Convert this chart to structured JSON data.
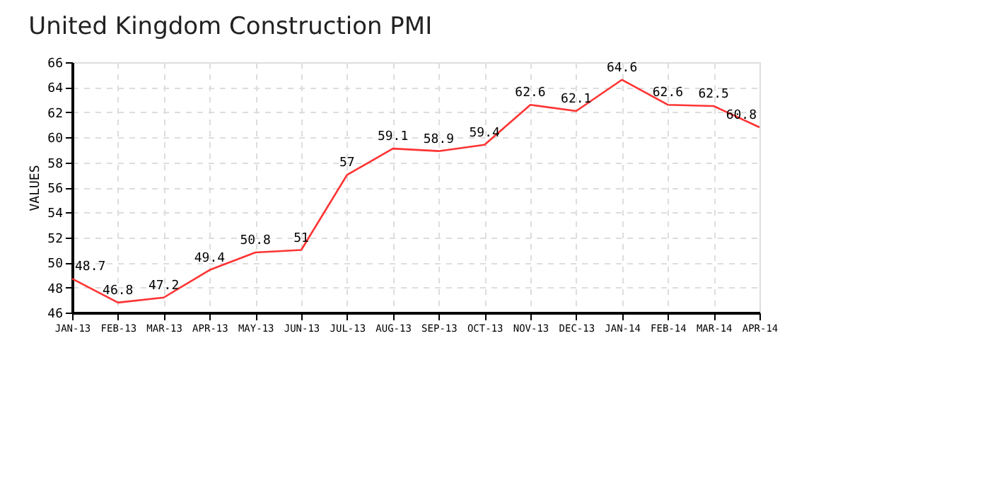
{
  "chart_data": {
    "type": "line",
    "title": "United Kingdom Construction PMI",
    "ylabel": "VALUES",
    "categories": [
      "JAN-13",
      "FEB-13",
      "MAR-13",
      "APR-13",
      "MAY-13",
      "JUN-13",
      "JUL-13",
      "AUG-13",
      "SEP-13",
      "OCT-13",
      "NOV-13",
      "DEC-13",
      "JAN-14",
      "FEB-14",
      "MAR-14",
      "APR-14"
    ],
    "series": [
      {
        "color": "#ff3333",
        "values": [
          48.7,
          46.8,
          47.2,
          49.4,
          50.8,
          51,
          57,
          59.1,
          58.9,
          59.4,
          62.6,
          62.1,
          64.6,
          62.6,
          62.5,
          60.8
        ]
      }
    ],
    "ylim": [
      46,
      66
    ],
    "yticks": [
      46,
      48,
      50,
      52,
      54,
      56,
      58,
      60,
      62,
      64,
      66
    ],
    "grid": true,
    "data_labels": true,
    "legend": false,
    "marker": "none",
    "line_style": "solid"
  }
}
